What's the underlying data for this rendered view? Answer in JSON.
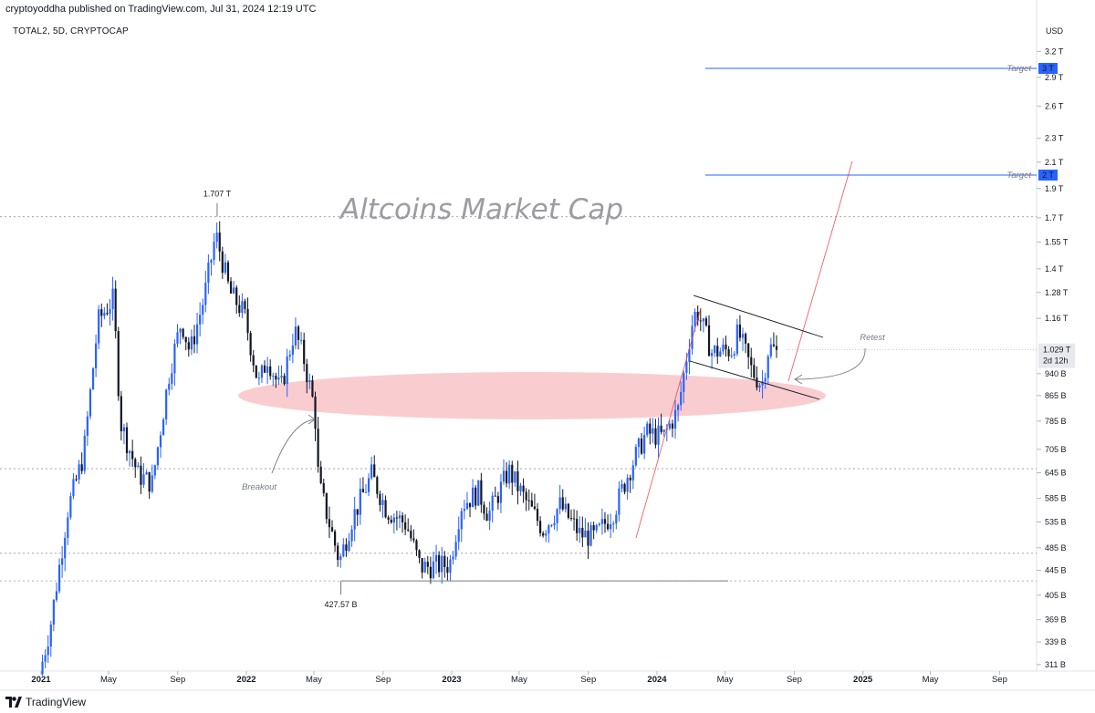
{
  "header": {
    "published": "cryptoyoddha published on TradingView.com, Jul 31, 2024 12:19 UTC",
    "symbol": "TOTAL2, 5D, CRYPTOCAP"
  },
  "footer": {
    "brand": "TradingView"
  },
  "colors": {
    "up": "#2962ff",
    "down": "#131722",
    "zone": "#f8c4c8",
    "target_line": "#2962ff",
    "channel": "#f23645",
    "flag": "#131722"
  },
  "chart_data": {
    "type": "candlestick",
    "title": "Altcoins Market Cap",
    "currency": "USD",
    "scale": "log",
    "x_ticks": [
      "2021",
      "May",
      "Sep",
      "2022",
      "May",
      "Sep",
      "2023",
      "May",
      "Sep",
      "2024",
      "May",
      "Sep",
      "2025",
      "May",
      "Sep"
    ],
    "y_ticks": [
      "3.2 T",
      "2.9 T",
      "2.6 T",
      "2.3 T",
      "2.1 T",
      "1.9 T",
      "1.7 T",
      "1.55 T",
      "1.4 T",
      "1.28 T",
      "1.16 T",
      "940 B",
      "865 B",
      "785 B",
      "705 B",
      "645 B",
      "585 B",
      "535 B",
      "485 B",
      "445 B",
      "405 B",
      "369 B",
      "339 B",
      "311 B"
    ],
    "ylim_billions": [
      300,
      3300
    ],
    "last_price": {
      "label": "1.029 T",
      "countdown": "2d 12h",
      "value_billions": 1029
    },
    "high": {
      "label": "1.707 T",
      "value_billions": 1707,
      "date": "2021-11-10"
    },
    "low": {
      "label": "427.57 B",
      "value_billions": 427.57,
      "date": "2022-06-18"
    },
    "targets": [
      {
        "name": "Target",
        "badge": "3 T",
        "value_billions": 3000
      },
      {
        "name": "Target",
        "badge": "2 T",
        "value_billions": 2000
      }
    ],
    "annotations": {
      "breakout": "Breakout",
      "retest": "Retest"
    },
    "horizontal_levels_billions": [
      1707,
      655,
      475,
      427.57
    ],
    "price_path": {
      "description": "monthly anchor closes in billions, drawn as 5-day candles",
      "points": [
        [
          "2021-01-01",
          300
        ],
        [
          "2021-01-20",
          360
        ],
        [
          "2021-02-20",
          560
        ],
        [
          "2021-03-20",
          690
        ],
        [
          "2021-04-15",
          1150
        ],
        [
          "2021-05-12",
          1250
        ],
        [
          "2021-05-25",
          780
        ],
        [
          "2021-06-25",
          640
        ],
        [
          "2021-07-20",
          620
        ],
        [
          "2021-08-20",
          950
        ],
        [
          "2021-09-10",
          1150
        ],
        [
          "2021-09-25",
          1020
        ],
        [
          "2021-10-20",
          1250
        ],
        [
          "2021-11-10",
          1600
        ],
        [
          "2021-12-05",
          1280
        ],
        [
          "2021-12-31",
          1180
        ],
        [
          "2022-01-25",
          900
        ],
        [
          "2022-02-10",
          1000
        ],
        [
          "2022-03-05",
          880
        ],
        [
          "2022-03-30",
          1110
        ],
        [
          "2022-04-15",
          1000
        ],
        [
          "2022-05-05",
          820
        ],
        [
          "2022-05-12",
          620
        ],
        [
          "2022-06-18",
          460
        ],
        [
          "2022-07-10",
          540
        ],
        [
          "2022-08-14",
          640
        ],
        [
          "2022-09-10",
          560
        ],
        [
          "2022-10-15",
          530
        ],
        [
          "2022-11-09",
          450
        ],
        [
          "2022-12-31",
          455
        ],
        [
          "2023-01-20",
          570
        ],
        [
          "2023-02-20",
          600
        ],
        [
          "2023-03-10",
          550
        ],
        [
          "2023-04-15",
          650
        ],
        [
          "2023-05-15",
          580
        ],
        [
          "2023-06-15",
          520
        ],
        [
          "2023-07-15",
          570
        ],
        [
          "2023-08-20",
          510
        ],
        [
          "2023-09-15",
          505
        ],
        [
          "2023-10-20",
          560
        ],
        [
          "2023-11-15",
          650
        ],
        [
          "2023-12-15",
          750
        ],
        [
          "2024-01-15",
          740
        ],
        [
          "2024-02-10",
          820
        ],
        [
          "2024-03-05",
          1130
        ],
        [
          "2024-03-14",
          1200
        ],
        [
          "2024-04-10",
          1020
        ],
        [
          "2024-05-15",
          1030
        ],
        [
          "2024-05-27",
          1100
        ],
        [
          "2024-06-20",
          950
        ],
        [
          "2024-07-08",
          900
        ],
        [
          "2024-07-20",
          1040
        ],
        [
          "2024-07-31",
          1029
        ]
      ]
    }
  }
}
